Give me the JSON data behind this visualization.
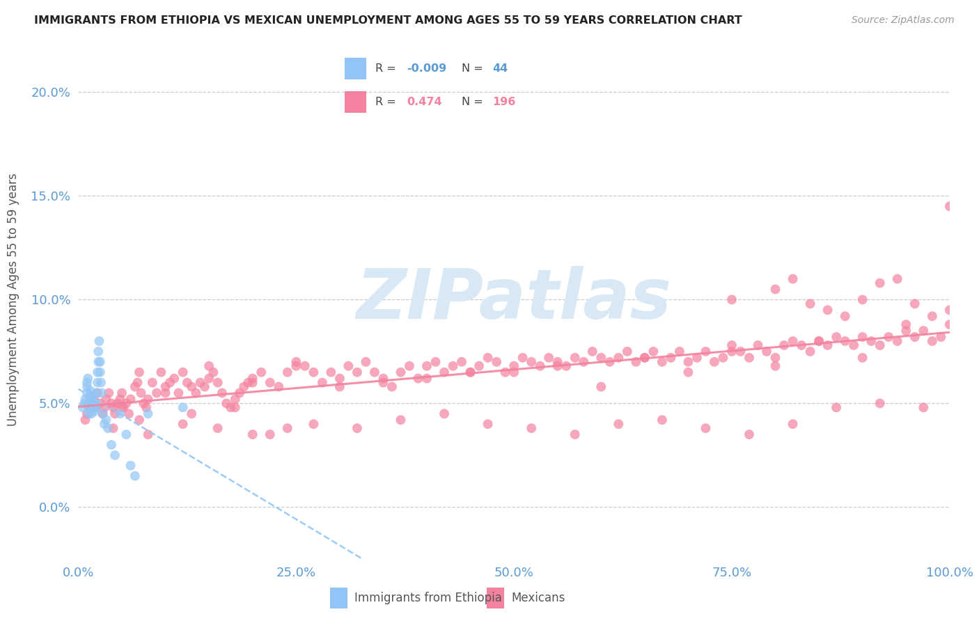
{
  "title": "IMMIGRANTS FROM ETHIOPIA VS MEXICAN UNEMPLOYMENT AMONG AGES 55 TO 59 YEARS CORRELATION CHART",
  "source": "Source: ZipAtlas.com",
  "ylabel": "Unemployment Among Ages 55 to 59 years",
  "xlim": [
    0.0,
    1.0
  ],
  "ylim": [
    -0.025,
    0.225
  ],
  "yticks": [
    0.0,
    0.05,
    0.1,
    0.15,
    0.2
  ],
  "ytick_labels": [
    "0.0%",
    "5.0%",
    "10.0%",
    "15.0%",
    "20.0%"
  ],
  "xticks": [
    0.0,
    0.25,
    0.5,
    0.75,
    1.0
  ],
  "xtick_labels": [
    "0.0%",
    "25.0%",
    "50.0%",
    "75.0%",
    "100.0%"
  ],
  "color_ethiopia": "#92c5f5",
  "color_mexico": "#f4829e",
  "background_color": "#ffffff",
  "ethiopia_x": [
    0.005,
    0.007,
    0.008,
    0.01,
    0.01,
    0.01,
    0.011,
    0.012,
    0.012,
    0.013,
    0.013,
    0.014,
    0.015,
    0.015,
    0.016,
    0.016,
    0.017,
    0.018,
    0.018,
    0.019,
    0.02,
    0.02,
    0.021,
    0.022,
    0.022,
    0.023,
    0.023,
    0.024,
    0.025,
    0.025,
    0.026,
    0.027,
    0.028,
    0.03,
    0.032,
    0.034,
    0.038,
    0.042,
    0.048,
    0.055,
    0.06,
    0.065,
    0.08,
    0.12
  ],
  "ethiopia_y": [
    0.048,
    0.05,
    0.052,
    0.055,
    0.058,
    0.06,
    0.062,
    0.048,
    0.045,
    0.05,
    0.053,
    0.056,
    0.045,
    0.048,
    0.05,
    0.052,
    0.054,
    0.046,
    0.048,
    0.05,
    0.048,
    0.05,
    0.055,
    0.06,
    0.065,
    0.07,
    0.075,
    0.08,
    0.07,
    0.065,
    0.06,
    0.055,
    0.045,
    0.04,
    0.042,
    0.038,
    0.03,
    0.025,
    0.045,
    0.035,
    0.02,
    0.015,
    0.045,
    0.048
  ],
  "mexico_x": [
    0.008,
    0.01,
    0.012,
    0.015,
    0.018,
    0.02,
    0.022,
    0.025,
    0.028,
    0.03,
    0.032,
    0.035,
    0.038,
    0.04,
    0.042,
    0.045,
    0.048,
    0.05,
    0.052,
    0.055,
    0.058,
    0.06,
    0.065,
    0.068,
    0.07,
    0.072,
    0.075,
    0.078,
    0.08,
    0.085,
    0.09,
    0.095,
    0.1,
    0.105,
    0.11,
    0.115,
    0.12,
    0.125,
    0.13,
    0.135,
    0.14,
    0.145,
    0.15,
    0.155,
    0.16,
    0.165,
    0.17,
    0.175,
    0.18,
    0.185,
    0.19,
    0.195,
    0.2,
    0.21,
    0.22,
    0.23,
    0.24,
    0.25,
    0.26,
    0.27,
    0.28,
    0.29,
    0.3,
    0.31,
    0.32,
    0.33,
    0.34,
    0.35,
    0.36,
    0.37,
    0.38,
    0.39,
    0.4,
    0.41,
    0.42,
    0.43,
    0.44,
    0.45,
    0.46,
    0.47,
    0.48,
    0.49,
    0.5,
    0.51,
    0.52,
    0.53,
    0.54,
    0.55,
    0.56,
    0.57,
    0.58,
    0.59,
    0.6,
    0.61,
    0.62,
    0.63,
    0.64,
    0.65,
    0.66,
    0.67,
    0.68,
    0.69,
    0.7,
    0.71,
    0.72,
    0.73,
    0.74,
    0.75,
    0.76,
    0.77,
    0.78,
    0.79,
    0.8,
    0.81,
    0.82,
    0.83,
    0.84,
    0.85,
    0.86,
    0.87,
    0.88,
    0.89,
    0.9,
    0.91,
    0.92,
    0.93,
    0.94,
    0.95,
    0.96,
    0.97,
    0.98,
    0.99,
    1.0,
    0.15,
    0.25,
    0.35,
    0.45,
    0.55,
    0.65,
    0.75,
    0.85,
    0.95,
    0.05,
    0.1,
    0.2,
    0.3,
    0.4,
    0.5,
    0.6,
    0.7,
    0.8,
    0.9,
    1.0,
    0.75,
    0.8,
    0.82,
    0.84,
    0.86,
    0.88,
    0.9,
    0.92,
    0.94,
    0.96,
    0.98,
    0.04,
    0.08,
    0.12,
    0.16,
    0.2,
    0.24,
    0.07,
    0.13,
    0.18,
    0.22,
    0.27,
    0.32,
    0.37,
    0.42,
    0.47,
    0.52,
    0.57,
    0.62,
    0.67,
    0.72,
    0.77,
    0.82,
    0.87,
    0.92,
    0.97,
    1.0
  ],
  "mexico_y": [
    0.042,
    0.045,
    0.048,
    0.05,
    0.052,
    0.048,
    0.055,
    0.05,
    0.045,
    0.048,
    0.052,
    0.055,
    0.05,
    0.048,
    0.045,
    0.05,
    0.052,
    0.055,
    0.048,
    0.05,
    0.045,
    0.052,
    0.058,
    0.06,
    0.065,
    0.055,
    0.05,
    0.048,
    0.052,
    0.06,
    0.055,
    0.065,
    0.058,
    0.06,
    0.062,
    0.055,
    0.065,
    0.06,
    0.058,
    0.055,
    0.06,
    0.058,
    0.062,
    0.065,
    0.06,
    0.055,
    0.05,
    0.048,
    0.052,
    0.055,
    0.058,
    0.06,
    0.062,
    0.065,
    0.06,
    0.058,
    0.065,
    0.07,
    0.068,
    0.065,
    0.06,
    0.065,
    0.062,
    0.068,
    0.065,
    0.07,
    0.065,
    0.06,
    0.058,
    0.065,
    0.068,
    0.062,
    0.068,
    0.07,
    0.065,
    0.068,
    0.07,
    0.065,
    0.068,
    0.072,
    0.07,
    0.065,
    0.068,
    0.072,
    0.07,
    0.068,
    0.072,
    0.07,
    0.068,
    0.072,
    0.07,
    0.075,
    0.072,
    0.07,
    0.072,
    0.075,
    0.07,
    0.072,
    0.075,
    0.07,
    0.072,
    0.075,
    0.07,
    0.072,
    0.075,
    0.07,
    0.072,
    0.078,
    0.075,
    0.072,
    0.078,
    0.075,
    0.072,
    0.078,
    0.08,
    0.078,
    0.075,
    0.08,
    0.078,
    0.082,
    0.08,
    0.078,
    0.082,
    0.08,
    0.078,
    0.082,
    0.08,
    0.088,
    0.082,
    0.085,
    0.08,
    0.082,
    0.088,
    0.068,
    0.068,
    0.062,
    0.065,
    0.068,
    0.072,
    0.075,
    0.08,
    0.085,
    0.048,
    0.055,
    0.06,
    0.058,
    0.062,
    0.065,
    0.058,
    0.065,
    0.068,
    0.072,
    0.095,
    0.1,
    0.105,
    0.11,
    0.098,
    0.095,
    0.092,
    0.1,
    0.108,
    0.11,
    0.098,
    0.092,
    0.038,
    0.035,
    0.04,
    0.038,
    0.035,
    0.038,
    0.042,
    0.045,
    0.048,
    0.035,
    0.04,
    0.038,
    0.042,
    0.045,
    0.04,
    0.038,
    0.035,
    0.04,
    0.042,
    0.038,
    0.035,
    0.04,
    0.048,
    0.05,
    0.048,
    0.145
  ]
}
